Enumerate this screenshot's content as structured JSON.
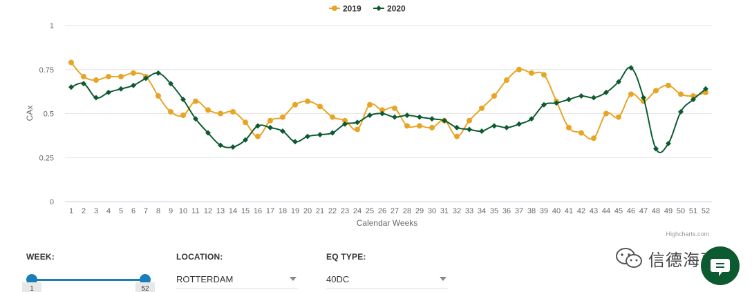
{
  "chart_data": {
    "type": "line",
    "title": "",
    "xlabel": "Calendar Weeks",
    "ylabel": "CAx",
    "ylim": [
      0,
      1
    ],
    "yticks": [
      "0",
      "0.25",
      "0.5",
      "0.75",
      "1"
    ],
    "y_tick_values": [
      0,
      0.25,
      0.5,
      0.75,
      1
    ],
    "categories": [
      "1",
      "2",
      "3",
      "4",
      "5",
      "6",
      "7",
      "8",
      "9",
      "10",
      "11",
      "12",
      "13",
      "14",
      "15",
      "16",
      "17",
      "18",
      "19",
      "20",
      "21",
      "22",
      "23",
      "24",
      "25",
      "26",
      "27",
      "28",
      "29",
      "30",
      "31",
      "32",
      "33",
      "34",
      "35",
      "36",
      "37",
      "38",
      "39",
      "40",
      "41",
      "42",
      "43",
      "44",
      "45",
      "46",
      "47",
      "48",
      "49",
      "50",
      "51",
      "52"
    ],
    "legend_position": "top-center",
    "grid": true,
    "credits": "Highcharts.com",
    "series": [
      {
        "name": "2019",
        "color": "#e8a425",
        "marker": "circle",
        "values": [
          0.79,
          0.71,
          0.69,
          0.71,
          0.71,
          0.73,
          0.71,
          0.6,
          0.51,
          0.49,
          0.57,
          0.52,
          0.5,
          0.51,
          0.45,
          0.37,
          0.46,
          0.48,
          0.55,
          0.57,
          0.54,
          0.48,
          0.46,
          0.41,
          0.55,
          0.52,
          0.53,
          0.43,
          0.43,
          0.42,
          0.46,
          0.37,
          0.46,
          0.53,
          0.6,
          0.69,
          0.75,
          0.73,
          0.72,
          0.57,
          0.42,
          0.39,
          0.36,
          0.5,
          0.48,
          0.61,
          0.57,
          0.63,
          0.66,
          0.61,
          0.6,
          0.62
        ]
      },
      {
        "name": "2020",
        "color": "#0c5a30",
        "marker": "diamond",
        "values": [
          0.65,
          0.67,
          0.59,
          0.62,
          0.64,
          0.66,
          0.7,
          0.73,
          0.67,
          0.58,
          0.47,
          0.39,
          0.32,
          0.31,
          0.35,
          0.43,
          0.42,
          0.4,
          0.34,
          0.37,
          0.38,
          0.39,
          0.44,
          0.45,
          0.49,
          0.5,
          0.48,
          0.49,
          0.48,
          0.47,
          0.46,
          0.42,
          0.41,
          0.4,
          0.43,
          0.42,
          0.44,
          0.47,
          0.55,
          0.56,
          0.58,
          0.6,
          0.59,
          0.62,
          0.68,
          0.76,
          0.59,
          0.3,
          0.33,
          0.51,
          0.58,
          0.64
        ]
      }
    ]
  },
  "filters": {
    "week": {
      "label": "WEEK:",
      "min_value": "1",
      "max_value": "52",
      "range": [
        1,
        52
      ],
      "accent": "#1a7fb8"
    },
    "location": {
      "label": "LOCATION:",
      "value": "ROTTERDAM"
    },
    "eq_type": {
      "label": "EQ TYPE:",
      "value": "40DC"
    }
  },
  "watermark": {
    "text": "信德海事",
    "icon": "wechat-icon"
  },
  "chat_button": {
    "icon": "chat-bubble-icon",
    "color": "#0c5a30"
  }
}
